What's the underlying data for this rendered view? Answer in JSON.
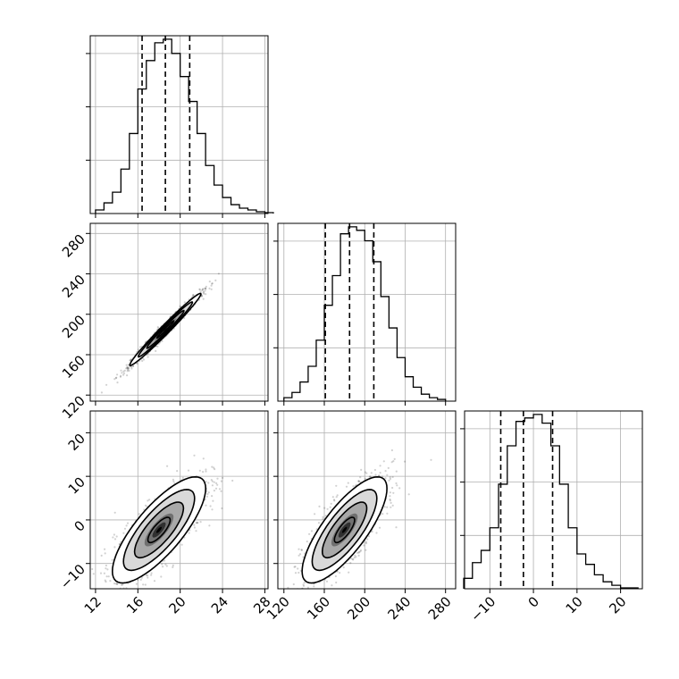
{
  "chart_data": {
    "type": "corner",
    "parameters": [
      {
        "ticks": [
          12,
          16,
          20,
          24,
          28
        ],
        "lim": [
          11.5,
          28.3
        ],
        "median": 18.6,
        "q16": 16.4,
        "q84": 20.9
      },
      {
        "ticks": [
          120,
          160,
          200,
          240,
          280
        ],
        "lim": [
          114,
          290
        ],
        "median": 185,
        "q16": 161,
        "q84": 209
      },
      {
        "ticks": [
          -10,
          0,
          10,
          20
        ],
        "lim": [
          -15.8,
          25
        ],
        "median": -2.3,
        "q16": -7.5,
        "q84": 4.4
      }
    ],
    "histograms": [
      {
        "bins_start": 12,
        "bins_width": 0.8,
        "counts": [
          2,
          6,
          12,
          25,
          45,
          70,
          86,
          96,
          98,
          90,
          77,
          63,
          45,
          27,
          16,
          9,
          5,
          3,
          2,
          1,
          0.5
        ]
      },
      {
        "bins_start": 120,
        "bins_width": 8,
        "counts": [
          2,
          5,
          11,
          20,
          35,
          55,
          72,
          96,
          100,
          98,
          92,
          80,
          60,
          42,
          25,
          14,
          8,
          4,
          2,
          1
        ]
      },
      {
        "bins_start": -16,
        "bins_width": 2,
        "counts": [
          6,
          15,
          22,
          35,
          60,
          82,
          96,
          98,
          100,
          95,
          82,
          60,
          35,
          20,
          14,
          8,
          4,
          2,
          0.5,
          0.5
        ]
      }
    ],
    "pairs": [
      {
        "x": 0,
        "y": 1,
        "mean": [
          18.6,
          185
        ],
        "sd": [
          1.6,
          17
        ],
        "rho": 0.985
      },
      {
        "x": 0,
        "y": 2,
        "mean": [
          18.0,
          -2.3
        ],
        "sd": [
          2.1,
          5.8
        ],
        "rho": 0.78
      },
      {
        "x": 1,
        "y": 2,
        "mean": [
          180,
          -2.3
        ],
        "sd": [
          20,
          5.8
        ],
        "rho": 0.78
      }
    ],
    "grid": true,
    "quantile_lines": "dashed"
  }
}
